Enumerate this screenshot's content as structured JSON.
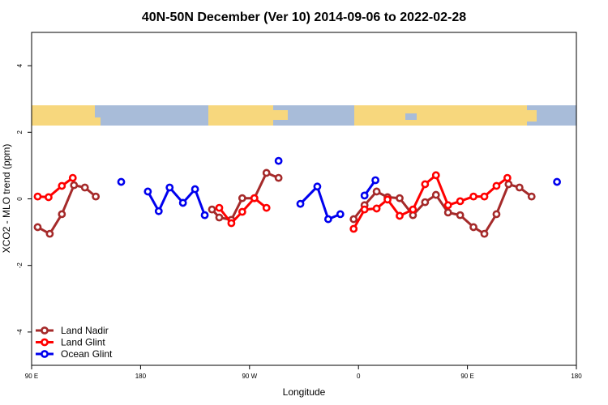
{
  "chart_data": {
    "type": "line",
    "title": "40N-50N December (Ver 10)   2014-09-06 to 2022-02-28",
    "x_label": "Longitude",
    "y_label": "XCO2 - MLO trend (ppm)",
    "xlim": [
      90,
      540
    ],
    "ylim": [
      -5,
      5
    ],
    "xticks": [
      {
        "value": 90,
        "label": "90 E"
      },
      180,
      {
        "value": 270,
        "label": "90 W"
      },
      {
        "value": 360,
        "label": "0"
      },
      {
        "value": 450,
        "label": "90 E"
      },
      {
        "value": 540,
        "label": "180"
      }
    ],
    "yticks": [
      -4,
      -2,
      0,
      2,
      4
    ],
    "grid": false,
    "legend": "bottom-left",
    "series": [
      {
        "name": "Land Nadir",
        "color": "#a52a2a",
        "x": [
          95,
          105,
          115,
          125,
          134,
          143,
          null,
          239,
          245,
          255,
          264,
          274,
          284,
          294,
          null,
          356,
          365,
          375,
          384,
          394,
          405,
          415,
          424,
          434,
          444,
          455,
          464,
          474,
          484,
          493,
          503
        ],
        "values": [
          -0.85,
          -1.05,
          -0.46,
          0.41,
          0.34,
          0.07,
          null,
          -0.32,
          -0.56,
          -0.63,
          0.02,
          0.02,
          0.78,
          0.63,
          null,
          -0.61,
          -0.19,
          0.22,
          0.05,
          0.02,
          -0.49,
          -0.1,
          0.12,
          -0.41,
          -0.49,
          -0.85,
          -1.05,
          -0.46,
          0.44,
          0.34,
          0.07
        ]
      },
      {
        "name": "Land Glint",
        "color": "#ff0000",
        "x": [
          95,
          104,
          115,
          124,
          null,
          245,
          255,
          264,
          274,
          284,
          null,
          356,
          365,
          375,
          384,
          394,
          405,
          415,
          424,
          434,
          444,
          455,
          464,
          474,
          483
        ],
        "values": [
          0.07,
          0.05,
          0.39,
          0.63,
          null,
          -0.27,
          -0.73,
          -0.39,
          0.02,
          -0.27,
          null,
          -0.9,
          -0.32,
          -0.29,
          -0.02,
          -0.51,
          -0.32,
          0.44,
          0.71,
          -0.19,
          -0.07,
          0.07,
          0.07,
          0.39,
          0.63
        ]
      },
      {
        "name": "Ocean Glint",
        "color": "#0000ee",
        "x": [
          164,
          null,
          186,
          195,
          204,
          215,
          225,
          233,
          null,
          294,
          null,
          312,
          326,
          335,
          345,
          null,
          365,
          374,
          null,
          524
        ],
        "values": [
          0.51,
          null,
          0.22,
          -0.37,
          0.34,
          -0.12,
          0.29,
          -0.49,
          null,
          1.14,
          null,
          -0.15,
          0.37,
          -0.61,
          -0.46,
          null,
          0.1,
          0.56,
          null,
          0.51
        ]
      }
    ]
  }
}
